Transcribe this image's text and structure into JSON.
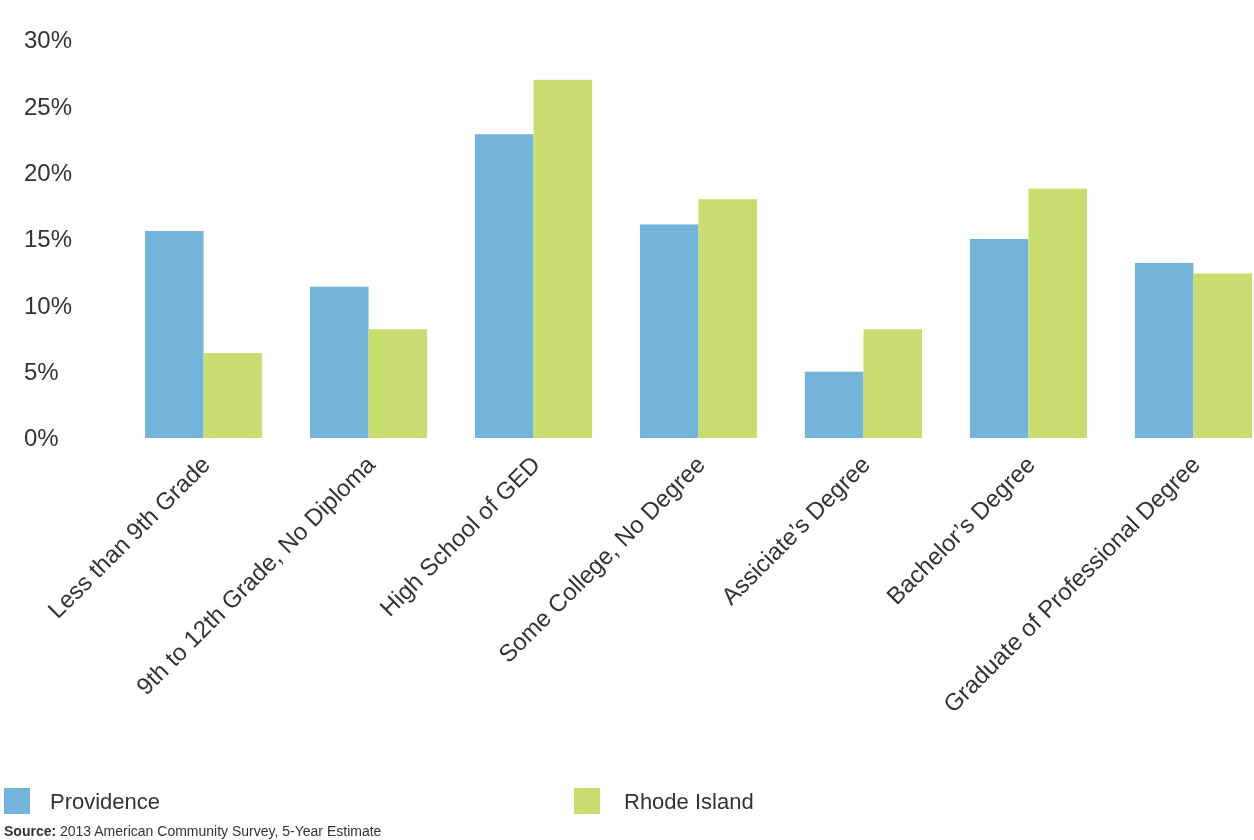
{
  "chart_data": {
    "type": "bar",
    "categories": [
      "Less than 9th Grade",
      "9th to 12th Grade, No Diploma",
      "High School of GED",
      "Some College, No Degree",
      "Assiciate’s Degree",
      "Bachelor’s Degree",
      "Graduate of Professional Degree"
    ],
    "series": [
      {
        "name": "Providence",
        "color": "#74b3da",
        "values": [
          15.6,
          11.4,
          22.9,
          16.1,
          5.0,
          15.0,
          13.2
        ]
      },
      {
        "name": "Rhode Island",
        "color": "#c9dc6f",
        "values": [
          6.4,
          8.2,
          27.0,
          18.0,
          8.2,
          18.8,
          12.4
        ]
      }
    ],
    "ylim": [
      0,
      30
    ],
    "yticks": [
      {
        "value": 0,
        "label": "0%"
      },
      {
        "value": 5,
        "label": "5%"
      },
      {
        "value": 10,
        "label": "10%"
      },
      {
        "value": 15,
        "label": "15%"
      },
      {
        "value": 20,
        "label": "20%"
      },
      {
        "value": 25,
        "label": "25%"
      },
      {
        "value": 30,
        "label": "30%"
      }
    ],
    "grid": false,
    "legend": "bottom",
    "annotations": [
      "Source: 2013 American Community Survey, 5-Year Estimate"
    ]
  }
}
